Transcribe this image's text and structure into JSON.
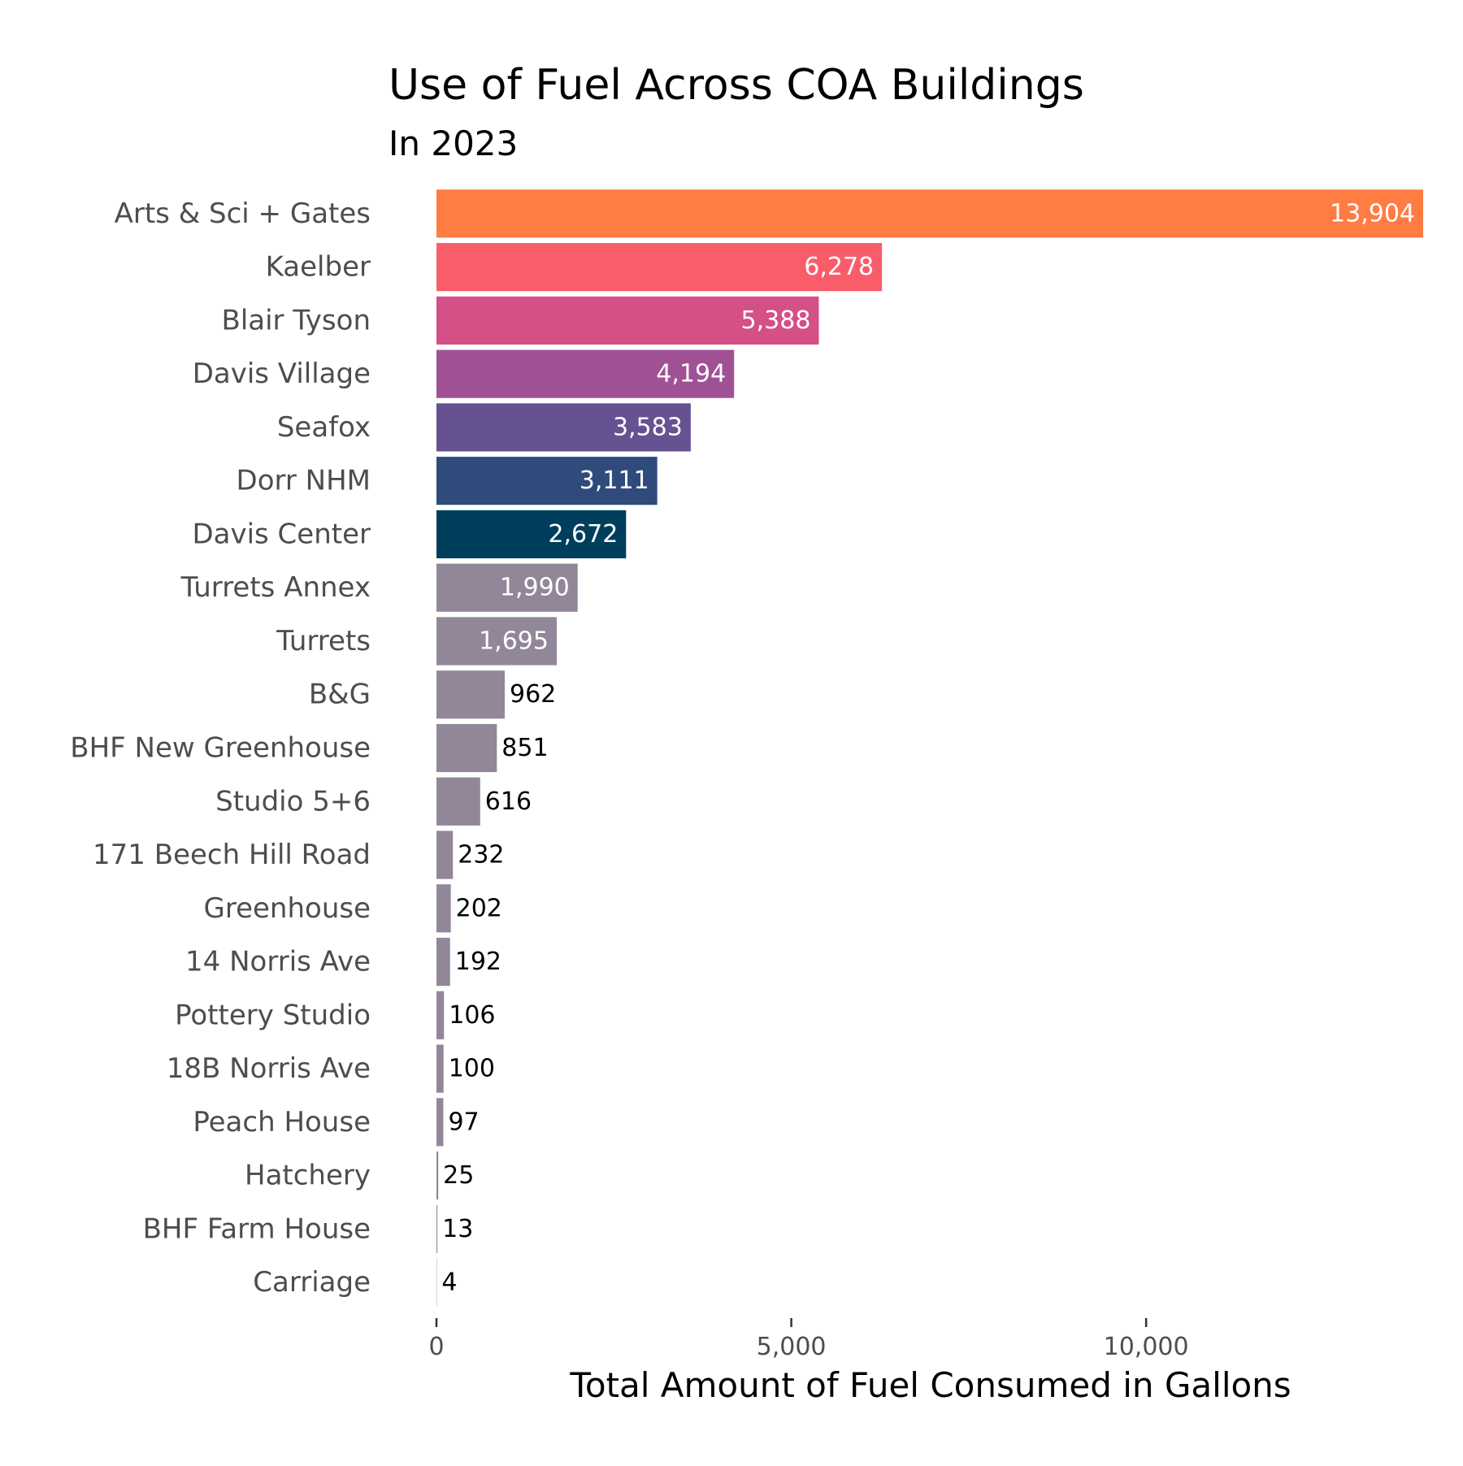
{
  "chart_data": {
    "type": "bar",
    "orientation": "horizontal",
    "title": "Use of Fuel Across COA Buildings",
    "subtitle": "In 2023",
    "xlabel": "Total Amount of Fuel Consumed in Gallons",
    "ylabel": "",
    "xlim": [
      0,
      13904
    ],
    "xticks": [
      0,
      5000,
      10000
    ],
    "xtick_labels": [
      "0",
      "5,000",
      "10,000"
    ],
    "grid": false,
    "legend": "none",
    "categories": [
      "Arts & Sci + Gates",
      "Kaelber",
      "Blair Tyson",
      "Davis Village",
      "Seafox",
      "Dorr NHM",
      "Davis Center",
      "Turrets Annex",
      "Turrets",
      "B&G",
      "BHF New Greenhouse",
      "Studio 5+6",
      "171 Beech Hill Road",
      "Greenhouse",
      "14 Norris Ave",
      "Pottery Studio",
      "18B Norris Ave",
      "Peach House",
      "Hatchery",
      "BHF Farm House",
      "Carriage"
    ],
    "values": [
      13904,
      6278,
      5388,
      4194,
      3583,
      3111,
      2672,
      1990,
      1695,
      962,
      851,
      616,
      232,
      202,
      192,
      106,
      100,
      97,
      25,
      13,
      4
    ],
    "value_labels": [
      "13,904",
      "6,278",
      "5,388",
      "4,194",
      "3,583",
      "3,111",
      "2,672",
      "1,990",
      "1,695",
      "962",
      "851",
      "616",
      "232",
      "202",
      "192",
      "106",
      "100",
      "97",
      "25",
      "13",
      "4"
    ],
    "colors": [
      "#ff7c43",
      "#f95d6a",
      "#d45087",
      "#a05195",
      "#665191",
      "#2f4b7c",
      "#003f5c",
      "#928799",
      "#928799",
      "#928799",
      "#928799",
      "#928799",
      "#928799",
      "#928799",
      "#928799",
      "#928799",
      "#928799",
      "#928799",
      "#928799",
      "#928799",
      "#928799"
    ]
  }
}
